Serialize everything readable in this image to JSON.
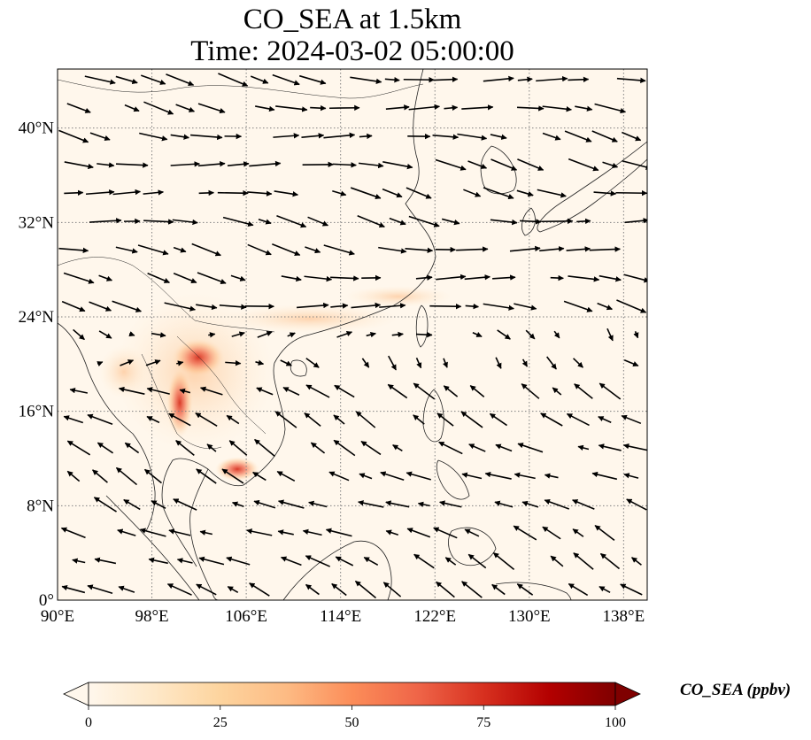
{
  "title": {
    "line1": "CO_SEA at 1.5km",
    "line2": "Time: 2024-03-02 05:00:00"
  },
  "map": {
    "extent": {
      "lon": [
        90,
        140
      ],
      "lat": [
        0,
        45
      ]
    },
    "lon_ticks": [
      {
        "value": 90,
        "label": "90°E"
      },
      {
        "value": 98,
        "label": "98°E"
      },
      {
        "value": 106,
        "label": "106°E"
      },
      {
        "value": 114,
        "label": "114°E"
      },
      {
        "value": 122,
        "label": "122°E"
      },
      {
        "value": 130,
        "label": "130°E"
      },
      {
        "value": 138,
        "label": "138°E"
      }
    ],
    "lat_ticks": [
      {
        "value": 0,
        "label": "0°"
      },
      {
        "value": 8,
        "label": "8°N"
      },
      {
        "value": 16,
        "label": "16°N"
      },
      {
        "value": 24,
        "label": "24°N"
      },
      {
        "value": 32,
        "label": "32°N"
      },
      {
        "value": 40,
        "label": "40°N"
      }
    ],
    "gridlines": true,
    "colors": {
      "background": "#fff7ec",
      "coast": "#222222",
      "grid": "#808080"
    }
  },
  "colorbar": {
    "title": "CO_SEA (ppbv)",
    "min": 0,
    "max": 100,
    "ticks": [
      {
        "value": 0,
        "label": "0"
      },
      {
        "value": 25,
        "label": "25"
      },
      {
        "value": 50,
        "label": "50"
      },
      {
        "value": 75,
        "label": "75"
      },
      {
        "value": 100,
        "label": "100"
      }
    ],
    "stops": [
      "#fff7ec",
      "#fee8c8",
      "#fdd49e",
      "#fdbb84",
      "#fc8d59",
      "#ef6548",
      "#d7301f",
      "#b30000",
      "#7f0000"
    ],
    "extend": "both"
  }
}
